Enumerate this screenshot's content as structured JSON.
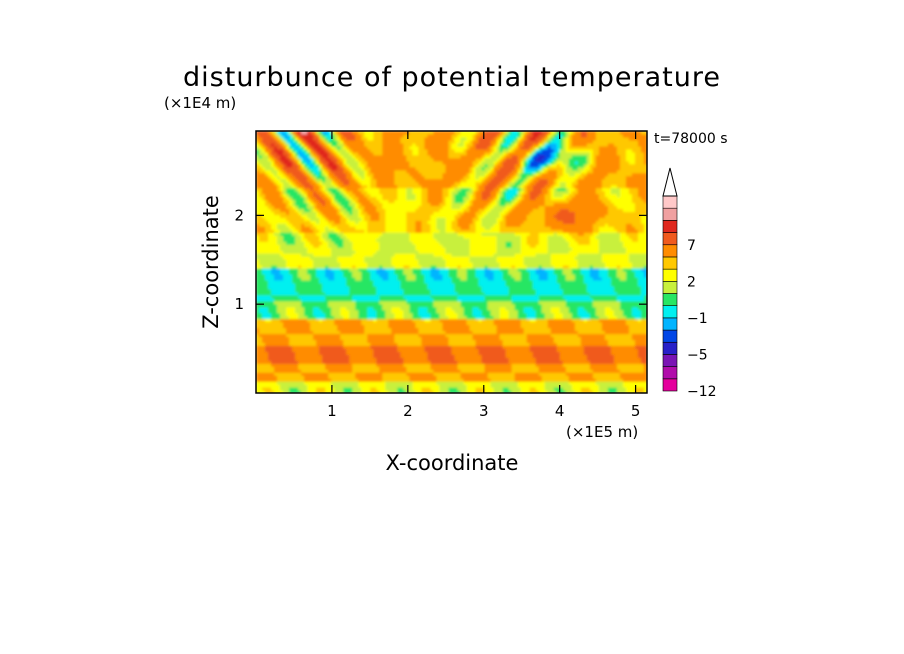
{
  "chart_data": {
    "type": "heatmap",
    "title": "disturbunce of potential temperature",
    "xlabel": "X-coordinate",
    "ylabel": "Z-coordinate",
    "x_unit": "(×1E5 m)",
    "y_unit": "(×1E4 m)",
    "time_label": "t=78000 s",
    "x_range": [
      0,
      5.15
    ],
    "y_range": [
      0,
      2.95
    ],
    "x_ticks": [
      1,
      2,
      3,
      4,
      5
    ],
    "y_ticks": [
      1,
      2
    ],
    "colorbar": {
      "levels": [
        -12,
        -9,
        -7,
        -5,
        -3,
        -2,
        -1,
        0,
        1,
        2,
        3,
        5,
        7,
        9,
        12
      ],
      "labels": [
        "7",
        "2",
        "−1",
        "−5",
        "−12"
      ],
      "label_values": [
        7,
        2,
        -1,
        -5,
        -12
      ],
      "colors": [
        "#e4009c",
        "#b00caa",
        "#7a14b4",
        "#2820c8",
        "#0046e6",
        "#00b4ff",
        "#00f0f0",
        "#28e664",
        "#c8f03c",
        "#ffff00",
        "#ffc800",
        "#ff8c00",
        "#f05a1e",
        "#e0281e",
        "#f0a0a0",
        "#ffc8c8"
      ],
      "extend": "max"
    },
    "field_description_bands": [
      {
        "z_from": 0.0,
        "z_to": 0.15,
        "level": 1
      },
      {
        "z_from": 0.15,
        "z_to": 0.35,
        "level": 3
      },
      {
        "z_from": 0.35,
        "z_to": 0.55,
        "level": 5
      },
      {
        "z_from": 0.55,
        "z_to": 0.85,
        "level": 3
      },
      {
        "z_from": 0.85,
        "z_to": 1.05,
        "level": 0
      },
      {
        "z_from": 1.05,
        "z_to": 1.4,
        "level": -1
      },
      {
        "z_from": 1.4,
        "z_to": 1.8,
        "level": 1
      },
      {
        "z_from": 1.8,
        "z_to": 2.3,
        "level": 2
      },
      {
        "z_from": 2.3,
        "z_to": 2.95,
        "level": 3
      }
    ]
  }
}
